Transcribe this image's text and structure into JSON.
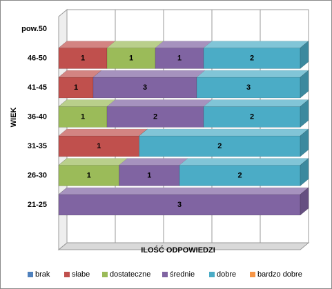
{
  "chart_data": {
    "type": "bar3d_stacked_percent",
    "y_label": "WIEK",
    "x_label": "ILOŚĆ ODPOWIEDZI",
    "categories": [
      "pow.50",
      "46-50",
      "41-45",
      "36-40",
      "31-35",
      "26-30",
      "21-25"
    ],
    "series": [
      {
        "name": "brak",
        "color": "#4f81bd",
        "values": [
          0,
          0,
          0,
          0,
          0,
          0,
          0
        ]
      },
      {
        "name": "słabe",
        "color": "#c0504d",
        "values": [
          0,
          1,
          1,
          0,
          1,
          0,
          0
        ]
      },
      {
        "name": "dostateczne",
        "color": "#9bbb59",
        "values": [
          0,
          1,
          0,
          1,
          0,
          1,
          0
        ]
      },
      {
        "name": "średnie",
        "color": "#8064a2",
        "values": [
          0,
          1,
          3,
          2,
          0,
          1,
          3
        ]
      },
      {
        "name": "dobre",
        "color": "#4bacc6",
        "values": [
          0,
          2,
          3,
          2,
          2,
          2,
          0
        ]
      },
      {
        "name": "bardzo dobre",
        "color": "#f79646",
        "values": [
          0,
          0,
          0,
          0,
          0,
          0,
          0
        ]
      }
    ],
    "grid": true,
    "legend": "bottom"
  }
}
